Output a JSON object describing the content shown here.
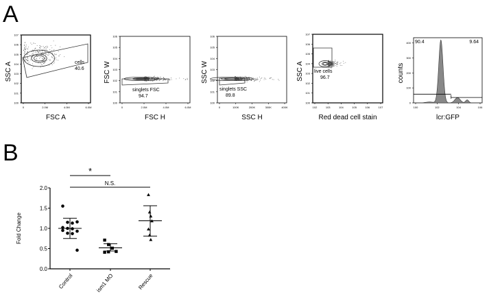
{
  "panel_labels": {
    "a": "A",
    "b": "B"
  },
  "flow_panels": [
    {
      "xlabel": "FSC A",
      "ylabel": "SSC A",
      "xticks": [
        "0",
        "2.0M",
        "4.0M",
        "6.0M"
      ],
      "yticks": [
        "10^0",
        "10^1",
        "10^2",
        "10^3",
        "10^4",
        "10^5",
        "10^6",
        "10^7"
      ],
      "gate_name": "cells",
      "gate_value": "40.6"
    },
    {
      "xlabel": "FSC H",
      "ylabel": "FSC W",
      "xticks": [
        "0",
        "2.0M",
        "4.0M",
        "6.0M"
      ],
      "yticks": [
        "10^0",
        "10^1",
        "10^2",
        "10^3",
        "10^4",
        "10^5",
        "10^6"
      ],
      "gate_name": "singlets FSC",
      "gate_value": "94.7"
    },
    {
      "xlabel": "SSC H",
      "ylabel": "SSC W",
      "xticks": [
        "0",
        "100K",
        "200K",
        "300K",
        "400K"
      ],
      "yticks": [
        "10^0",
        "10^1",
        "10^2",
        "10^3",
        "10^4",
        "10^5",
        "10^6"
      ],
      "gate_name": "singlets SSC",
      "gate_value": "89.8"
    },
    {
      "xlabel": "Red dead cell stain",
      "ylabel": "SSC A",
      "xticks": [
        "10^2",
        "10^3",
        "10^4",
        "10^5",
        "10^6",
        "10^7"
      ],
      "yticks": [
        "10^0",
        "10^1",
        "10^2",
        "10^3",
        "10^4",
        "10^5",
        "10^6",
        "10^7"
      ],
      "gate_name": "live cells",
      "gate_value": "96.7"
    },
    {
      "xlabel": "lcr:GFP",
      "ylabel": "counts",
      "xticks": [
        "10^0",
        "10^2",
        "10^4",
        "10^6"
      ],
      "yticks": [
        "0",
        "100",
        "200",
        "300",
        "400"
      ],
      "gate_left_value": "90.4",
      "gate_right_value": "9.64"
    }
  ],
  "chart_data": {
    "type": "scatter",
    "ylabel": "Fold Change",
    "ylim": [
      0,
      2.0
    ],
    "yticks": [
      "0.0",
      "0.5",
      "1.0",
      "1.5",
      "2.0"
    ],
    "categories": [
      "Control",
      "ism1 MO",
      "Rescue"
    ],
    "series": [
      {
        "category": "Control",
        "marker": "circle",
        "values": [
          1.55,
          1.15,
          1.13,
          1.16,
          1.02,
          1.0,
          0.99,
          0.93,
          0.95,
          0.88,
          0.87,
          0.46
        ],
        "mean": 1.0,
        "sd_low": 0.75,
        "sd_high": 1.25
      },
      {
        "category": "ism1 MO",
        "marker": "square",
        "values": [
          0.71,
          0.6,
          0.51,
          0.43,
          0.41,
          0.42
        ],
        "mean": 0.52,
        "sd_low": 0.44,
        "sd_high": 0.62
      },
      {
        "category": "Rescue",
        "marker": "triangle",
        "values": [
          1.83,
          1.4,
          1.3,
          1.18,
          0.98,
          0.83,
          0.72
        ],
        "mean": 1.19,
        "sd_low": 0.81,
        "sd_high": 1.56
      }
    ],
    "significance": [
      {
        "from": "Control",
        "to": "ism1 MO",
        "label": "*"
      },
      {
        "from": "Control",
        "to": "Rescue",
        "label": "N.S."
      }
    ]
  }
}
